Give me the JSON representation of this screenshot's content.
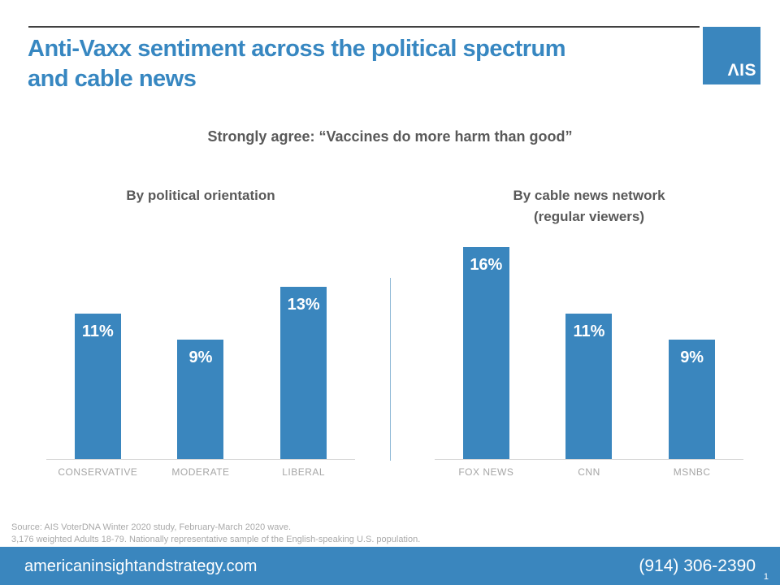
{
  "slide": {
    "title": "Anti-Vaxx sentiment across the political spectrum and cable news",
    "title_lines": [
      "Anti-Vaxx sentiment across the political spectrum",
      "and cable news"
    ],
    "logo_text": "ΛIS",
    "subtitle": "Strongly agree: “Vaccines do more harm than good”",
    "source_line1": "Source: AIS VoterDNA Winter 2020 study, February-March 2020 wave.",
    "source_line2": "3,176 weighted Adults 18-79. Nationally representative sample of the English-speaking U.S. population.",
    "footer": {
      "website": "americaninsightandstrategy.com",
      "phone": "(914) 306-2390",
      "page_number": "1"
    }
  },
  "colors": {
    "accent_blue": "#3a86be",
    "title_blue": "#3787c1",
    "heading_gray": "#595959",
    "axis_label_gray": "#a6a6a6",
    "axis_line_gray": "#d9d9d9",
    "top_rule_gray": "#404040",
    "divider_blue": "#8fb9d6"
  },
  "chart_data": [
    {
      "type": "bar",
      "title": "By political orientation",
      "title_lines": [
        "By political orientation"
      ],
      "categories": [
        "CONSERVATIVE",
        "MODERATE",
        "LIBERAL"
      ],
      "values": [
        11,
        9,
        13
      ],
      "labels": [
        "11%",
        "9%",
        "13%"
      ],
      "unit": "%",
      "ylim": [
        0,
        16
      ],
      "bar_color": "#3a86be",
      "grid": false,
      "legend": false,
      "value_label_position": "inside-top"
    },
    {
      "type": "bar",
      "title": "By cable news network (regular viewers)",
      "title_lines": [
        "By cable news network",
        "(regular viewers)"
      ],
      "categories": [
        "FOX NEWS",
        "CNN",
        "MSNBC"
      ],
      "values": [
        16,
        11,
        9
      ],
      "labels": [
        "16%",
        "11%",
        "9%"
      ],
      "unit": "%",
      "ylim": [
        0,
        16
      ],
      "bar_color": "#3a86be",
      "grid": false,
      "legend": false,
      "value_label_position": "inside-top"
    }
  ]
}
